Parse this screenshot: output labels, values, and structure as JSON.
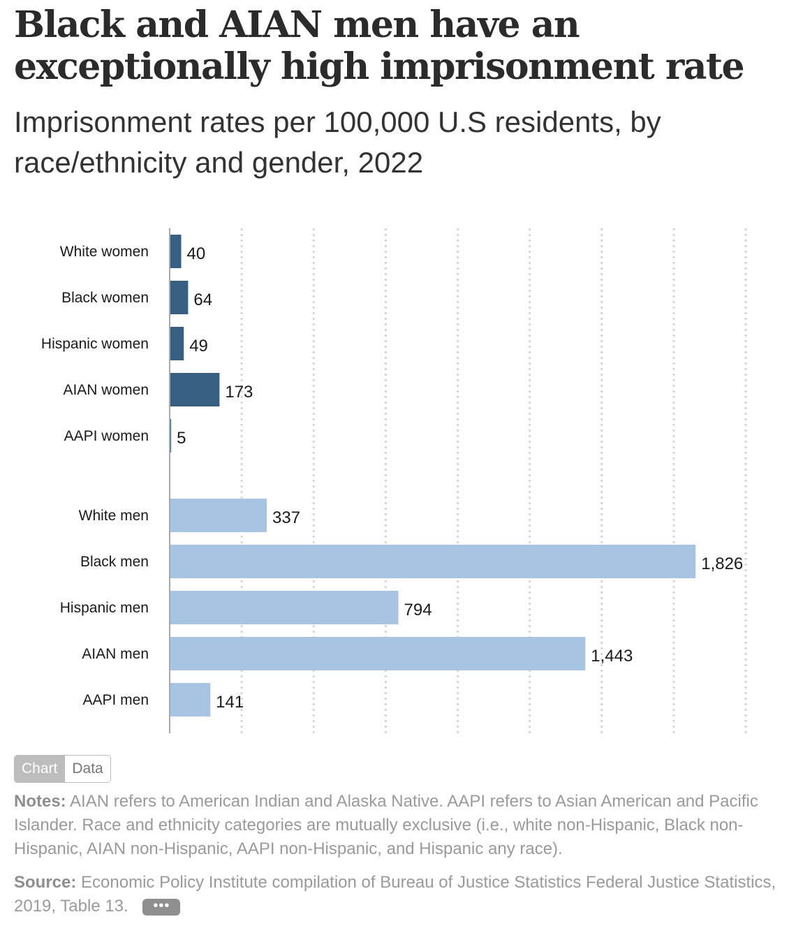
{
  "header": {
    "title": "Black and AIAN men have an exceptionally high imprisonment rate",
    "subtitle": "Imprisonment rates per 100,000 U.S residents, by race/ethnicity and gender, 2022"
  },
  "chart_data": {
    "type": "bar",
    "orientation": "horizontal",
    "title": "Black and AIAN men have an exceptionally high imprisonment rate",
    "subtitle": "Imprisonment rates per 100,000 U.S residents, by race/ethnicity and gender, 2022",
    "xlim": [
      0,
      1800
    ],
    "grid": true,
    "groups": [
      {
        "color": "#365f82",
        "categories": [
          "White women",
          "Black women",
          "Hispanic women",
          "AIAN women",
          "AAPI women"
        ],
        "values": [
          40,
          64,
          49,
          173,
          5
        ],
        "labels": [
          "40",
          "64",
          "49",
          "173",
          "5"
        ]
      },
      {
        "color": "#a7c5e3",
        "categories": [
          "White men",
          "Black men",
          "Hispanic men",
          "AIAN men",
          "AAPI men"
        ],
        "values": [
          337,
          1826,
          794,
          1443,
          141
        ],
        "labels": [
          "337",
          "1,826",
          "794",
          "1,443",
          "141"
        ]
      }
    ]
  },
  "toggle": {
    "chart_label": "Chart",
    "data_label": "Data"
  },
  "notes": {
    "label": "Notes:",
    "text": "AIAN refers to American Indian and Alaska Native. AAPI refers to Asian American and Pacific Islander. Race and ethnicity categories are mutually exclusive (i.e., white non-Hispanic, Black non-Hispanic, AIAN non-Hispanic, AAPI non-Hispanic,  and Hispanic any race)."
  },
  "source": {
    "label": "Source:",
    "text": "Economic Policy Institute compilation of Bureau of Justice Statistics Federal Justice Statistics, 2019, Table 13.",
    "more_label": "•••"
  }
}
